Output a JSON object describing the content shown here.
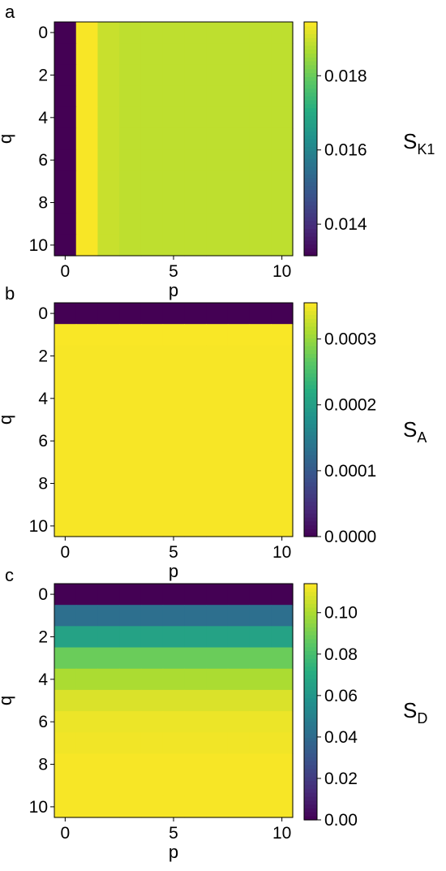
{
  "chart_data": [
    {
      "panel": "a",
      "type": "heatmap",
      "xlabel": "p",
      "ylabel": "q",
      "colorbar_label": {
        "main": "S",
        "sub": "K1"
      },
      "x_range": [
        0,
        10
      ],
      "y_range": [
        0,
        10
      ],
      "xticks": [
        "0",
        "5",
        "10"
      ],
      "yticks": [
        "0",
        "2",
        "4",
        "6",
        "8",
        "10"
      ],
      "colorbar_ticks": [
        {
          "value": 0.014,
          "label": "0.014"
        },
        {
          "value": 0.016,
          "label": "0.016"
        },
        {
          "value": 0.018,
          "label": "0.018"
        }
      ],
      "vmin": 0.01315,
      "vmax": 0.01945,
      "colormap": "viridis",
      "row_profile": null,
      "column_profile": [
        0.01315,
        0.0194,
        0.01895,
        0.01885,
        0.01885,
        0.01885,
        0.01885,
        0.01885,
        0.01885,
        0.01885,
        0.01885
      ]
    },
    {
      "panel": "b",
      "type": "heatmap",
      "xlabel": "p",
      "ylabel": "q",
      "colorbar_label": {
        "main": "S",
        "sub": "A"
      },
      "x_range": [
        0,
        10
      ],
      "y_range": [
        0,
        10
      ],
      "xticks": [
        "0",
        "5",
        "10"
      ],
      "yticks": [
        "0",
        "2",
        "4",
        "6",
        "8",
        "10"
      ],
      "colorbar_ticks": [
        {
          "value": 0.0,
          "label": "0.0000"
        },
        {
          "value": 0.0001,
          "label": "0.0001"
        },
        {
          "value": 0.0002,
          "label": "0.0002"
        },
        {
          "value": 0.0003,
          "label": "0.0003"
        }
      ],
      "vmin": 0.0,
      "vmax": 0.000355,
      "colormap": "viridis",
      "row_profile": [
        0.0,
        0.000353,
        0.000352,
        0.000352,
        0.000352,
        0.000352,
        0.000352,
        0.000352,
        0.000352,
        0.000352,
        0.000352
      ],
      "column_profile": null
    },
    {
      "panel": "c",
      "type": "heatmap",
      "xlabel": "p",
      "ylabel": "q",
      "colorbar_label": {
        "main": "S",
        "sub": "D"
      },
      "x_range": [
        0,
        10
      ],
      "y_range": [
        0,
        10
      ],
      "xticks": [
        "0",
        "5",
        "10"
      ],
      "yticks": [
        "0",
        "2",
        "4",
        "6",
        "8",
        "10"
      ],
      "colorbar_ticks": [
        {
          "value": 0.0,
          "label": "0.00"
        },
        {
          "value": 0.02,
          "label": "0.02"
        },
        {
          "value": 0.04,
          "label": "0.04"
        },
        {
          "value": 0.06,
          "label": "0.06"
        },
        {
          "value": 0.08,
          "label": "0.08"
        },
        {
          "value": 0.1,
          "label": "0.10"
        }
      ],
      "vmin": 0.0,
      "vmax": 0.114,
      "colormap": "viridis",
      "row_profile": [
        0.0,
        0.042,
        0.066,
        0.088,
        0.1,
        0.108,
        0.111,
        0.112,
        0.113,
        0.113,
        0.113
      ],
      "column_profile": null
    }
  ]
}
